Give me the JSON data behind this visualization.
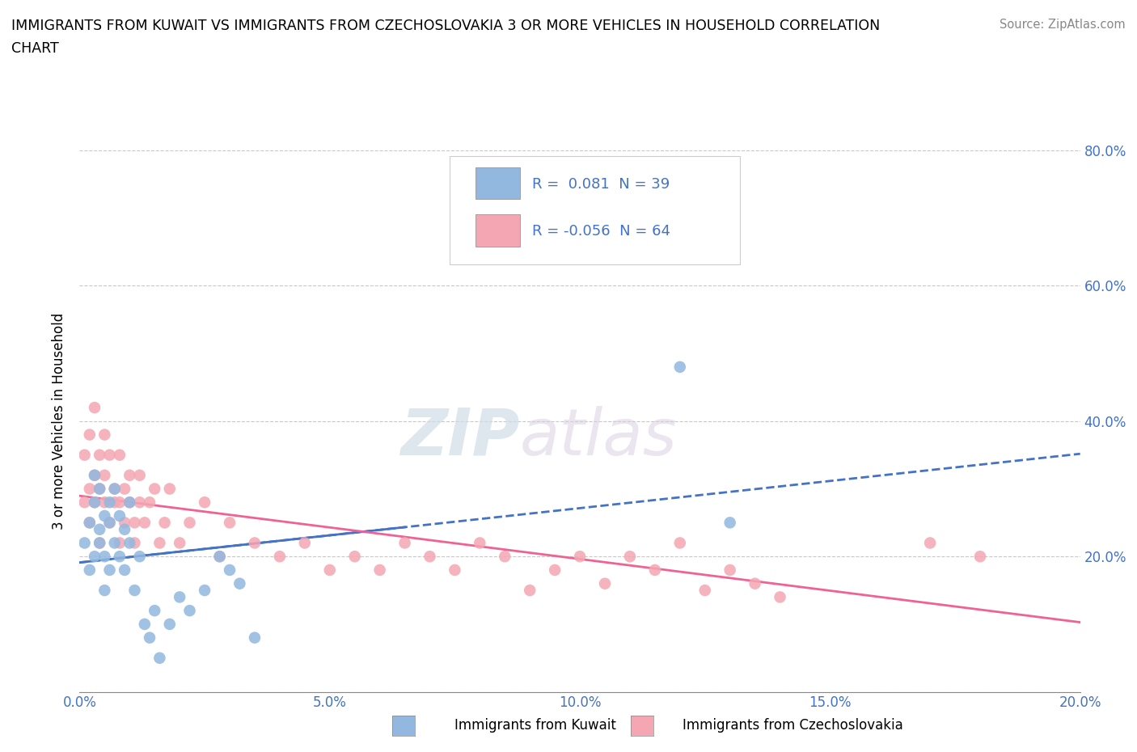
{
  "title_line1": "IMMIGRANTS FROM KUWAIT VS IMMIGRANTS FROM CZECHOSLOVAKIA 3 OR MORE VEHICLES IN HOUSEHOLD CORRELATION",
  "title_line2": "CHART",
  "source_text": "Source: ZipAtlas.com",
  "watermark_zip": "ZIP",
  "watermark_atlas": "atlas",
  "ylabel": "3 or more Vehicles in Household",
  "xlim": [
    0.0,
    0.2
  ],
  "ylim": [
    0.0,
    0.8
  ],
  "xticks": [
    0.0,
    0.05,
    0.1,
    0.15,
    0.2
  ],
  "yticks": [
    0.0,
    0.2,
    0.4,
    0.6,
    0.8
  ],
  "xticklabels": [
    "0.0%",
    "5.0%",
    "10.0%",
    "15.0%",
    "20.0%"
  ],
  "yticklabels_left": [
    "",
    "",
    "",
    "",
    ""
  ],
  "yticklabels_right": [
    "",
    "20.0%",
    "40.0%",
    "60.0%",
    "80.0%"
  ],
  "kuwait_R": 0.081,
  "kuwait_N": 39,
  "czech_R": -0.056,
  "czech_N": 64,
  "kuwait_color": "#92b8e0",
  "czech_color": "#f4a7b2",
  "kuwait_line_color": "#4472c4",
  "czech_line_color": "#f06292",
  "legend_label_kuwait": "Immigrants from Kuwait",
  "legend_label_czech": "Immigrants from Czechoslovakia",
  "kuwait_x": [
    0.001,
    0.002,
    0.002,
    0.003,
    0.003,
    0.003,
    0.004,
    0.004,
    0.004,
    0.005,
    0.005,
    0.005,
    0.006,
    0.006,
    0.006,
    0.007,
    0.007,
    0.008,
    0.008,
    0.009,
    0.009,
    0.01,
    0.01,
    0.011,
    0.012,
    0.013,
    0.014,
    0.015,
    0.016,
    0.018,
    0.02,
    0.025,
    0.03,
    0.032,
    0.035,
    0.12,
    0.13,
    0.028,
    0.022
  ],
  "kuwait_y": [
    0.22,
    0.18,
    0.25,
    0.2,
    0.28,
    0.32,
    0.24,
    0.3,
    0.22,
    0.26,
    0.2,
    0.15,
    0.28,
    0.25,
    0.18,
    0.22,
    0.3,
    0.26,
    0.2,
    0.24,
    0.18,
    0.22,
    0.28,
    0.15,
    0.2,
    0.1,
    0.08,
    0.12,
    0.05,
    0.1,
    0.14,
    0.15,
    0.18,
    0.16,
    0.08,
    0.48,
    0.25,
    0.2,
    0.12
  ],
  "czech_x": [
    0.001,
    0.001,
    0.002,
    0.002,
    0.002,
    0.003,
    0.003,
    0.003,
    0.004,
    0.004,
    0.004,
    0.005,
    0.005,
    0.005,
    0.006,
    0.006,
    0.007,
    0.007,
    0.008,
    0.008,
    0.008,
    0.009,
    0.009,
    0.01,
    0.01,
    0.011,
    0.011,
    0.012,
    0.012,
    0.013,
    0.014,
    0.015,
    0.016,
    0.017,
    0.018,
    0.02,
    0.022,
    0.025,
    0.028,
    0.03,
    0.035,
    0.04,
    0.045,
    0.05,
    0.055,
    0.06,
    0.065,
    0.07,
    0.075,
    0.08,
    0.085,
    0.09,
    0.095,
    0.1,
    0.105,
    0.11,
    0.115,
    0.12,
    0.125,
    0.13,
    0.135,
    0.14,
    0.17,
    0.18
  ],
  "czech_y": [
    0.28,
    0.35,
    0.3,
    0.38,
    0.25,
    0.32,
    0.42,
    0.28,
    0.35,
    0.3,
    0.22,
    0.38,
    0.28,
    0.32,
    0.25,
    0.35,
    0.28,
    0.3,
    0.22,
    0.28,
    0.35,
    0.25,
    0.3,
    0.28,
    0.32,
    0.25,
    0.22,
    0.28,
    0.32,
    0.25,
    0.28,
    0.3,
    0.22,
    0.25,
    0.3,
    0.22,
    0.25,
    0.28,
    0.2,
    0.25,
    0.22,
    0.2,
    0.22,
    0.18,
    0.2,
    0.18,
    0.22,
    0.2,
    0.18,
    0.22,
    0.2,
    0.15,
    0.18,
    0.2,
    0.16,
    0.2,
    0.18,
    0.22,
    0.15,
    0.18,
    0.16,
    0.14,
    0.22,
    0.2
  ]
}
